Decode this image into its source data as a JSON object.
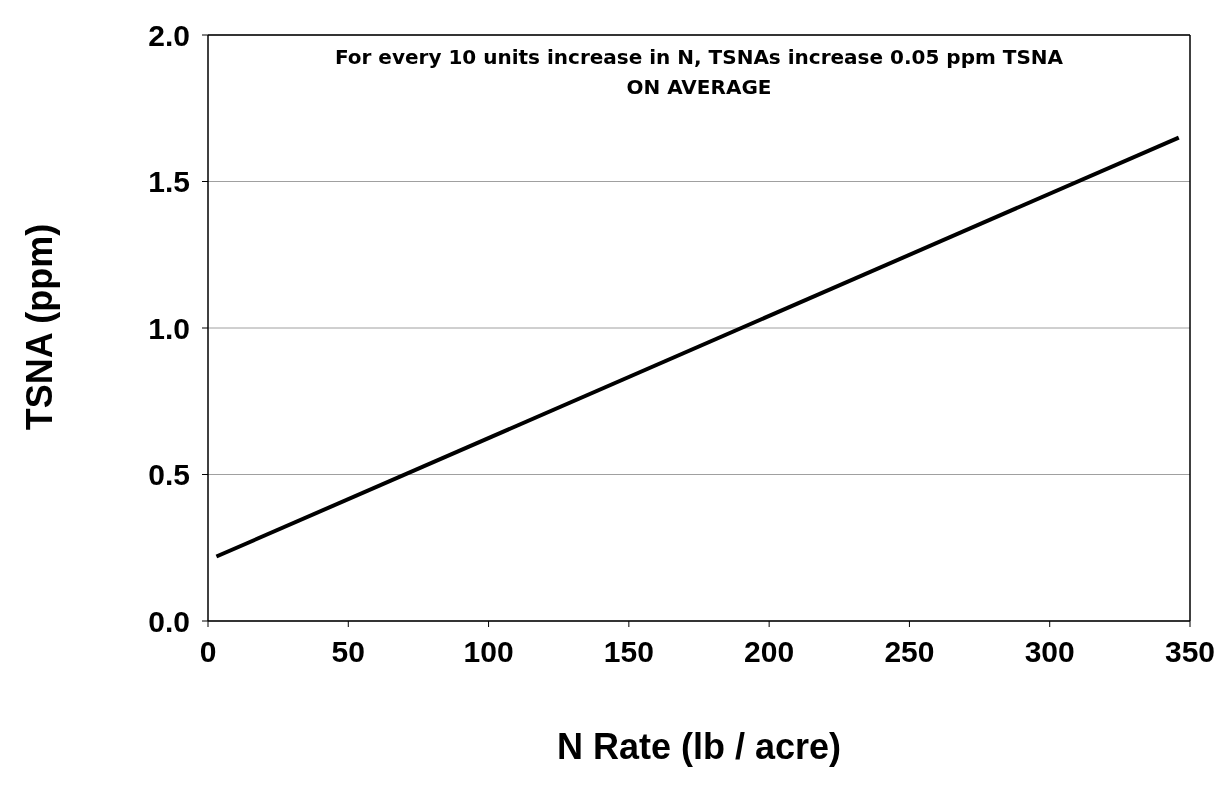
{
  "chart_data": {
    "type": "line",
    "xlabel": "N Rate (lb / acre)",
    "ylabel": "TSNA (ppm)",
    "annotations": [
      "For every 10 units increase in N,  TSNAs increase 0.05 ppm TSNA\nON AVERAGE"
    ],
    "x": [
      3,
      346
    ],
    "series": [
      {
        "color": "#000000",
        "values": [
          0.22,
          1.65
        ]
      }
    ],
    "xlim": [
      0,
      350
    ],
    "xticks": [
      0,
      50,
      100,
      150,
      200,
      250,
      300,
      350
    ],
    "ylim": [
      0,
      2
    ],
    "yticks": [
      {
        "value": 0,
        "label": "0.0"
      },
      {
        "value": 0.5,
        "label": "0.5"
      },
      {
        "value": 1,
        "label": "1.0"
      },
      {
        "value": 1.5,
        "label": "1.5"
      },
      {
        "value": 2,
        "label": "2.0"
      }
    ],
    "grid": "y",
    "legend": false,
    "marker": "none",
    "line_style": "solid"
  }
}
